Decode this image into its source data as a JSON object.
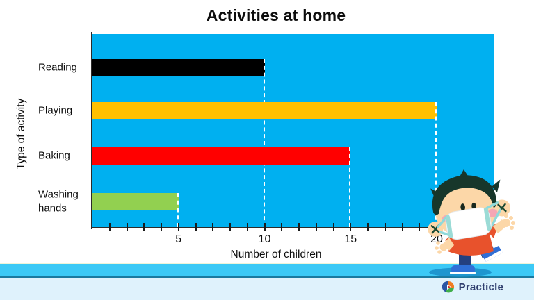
{
  "chart_data": {
    "type": "bar",
    "orientation": "horizontal",
    "title": "Activities at home",
    "xlabel": "Number of children",
    "ylabel": "Type of activity",
    "categories": [
      "Reading",
      "Playing",
      "Baking",
      "Washing hands"
    ],
    "values": [
      10,
      20,
      15,
      5
    ],
    "bar_colors": [
      "#000000",
      "#FFC000",
      "#FF0000",
      "#92D050"
    ],
    "xlim": [
      0,
      23
    ],
    "x_tick_labels": [
      5,
      10,
      15,
      20
    ],
    "minor_tick_step": 1,
    "legend": "none",
    "gridlines": "white dashed drop lines from each bar end to the x-axis"
  },
  "colors": {
    "plot_background": "#00B0F0",
    "drop_line": "#FFFFFF",
    "floor_band": "#3CC9F6",
    "footer_background": "#DFF2FC",
    "brand_text": "#2F3E6E"
  },
  "footer": {
    "brand": "Practicle"
  },
  "mascot": {
    "name": "boy-wearing-face-mask"
  }
}
